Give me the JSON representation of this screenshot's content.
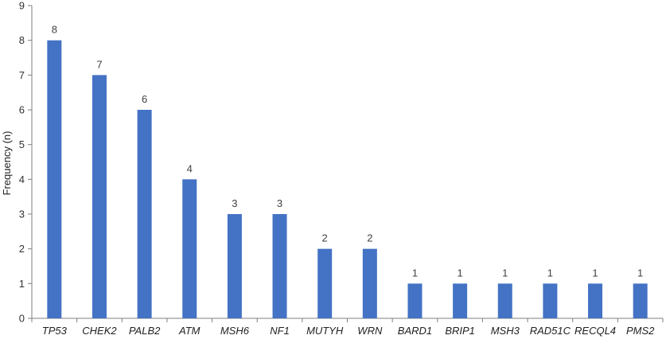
{
  "chart_data": {
    "type": "bar",
    "title": "",
    "xlabel": "",
    "ylabel": "Frequency (n)",
    "ylim": [
      0,
      9
    ],
    "yticks": [
      0,
      1,
      2,
      3,
      4,
      5,
      6,
      7,
      8,
      9
    ],
    "grid": false,
    "legend": "none",
    "bar_color": "#4472C4",
    "categories": [
      "TP53",
      "CHEK2",
      "PALB2",
      "ATM",
      "MSH6",
      "NF1",
      "MUTYH",
      "WRN",
      "BARD1",
      "BRIP1",
      "MSH3",
      "RAD51C",
      "RECQL4",
      "PMS2"
    ],
    "values": [
      8,
      7,
      6,
      4,
      3,
      3,
      2,
      2,
      1,
      1,
      1,
      1,
      1,
      1
    ],
    "data_labels": [
      "8",
      "7",
      "6",
      "4",
      "3",
      "3",
      "2",
      "2",
      "1",
      "1",
      "1",
      "1",
      "1",
      "1"
    ]
  }
}
